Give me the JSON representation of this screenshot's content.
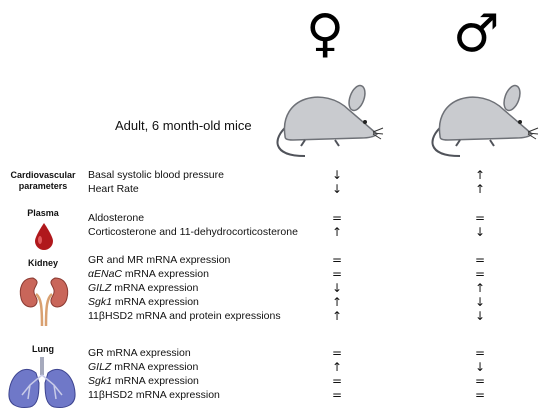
{
  "header": {
    "female_symbol": "♀",
    "male_symbol": "♂",
    "subject": "Adult, 6 month-old mice"
  },
  "categories": [
    {
      "label_line1": "Cardiovascular",
      "label_line2": "parameters",
      "icon": "blood-pressure-text"
    },
    {
      "label_line1": "Plasma",
      "label_line2": "",
      "icon": "blood-drop-icon"
    },
    {
      "label_line1": "Kidney",
      "label_line2": "",
      "icon": "kidney-icon"
    },
    {
      "label_line1": "Lung",
      "label_line2": "",
      "icon": "lung-icon"
    }
  ],
  "rows": [
    {
      "pre": "",
      "it": "",
      "post": "Basal systolic blood pressure",
      "female": "↓",
      "male": "↑"
    },
    {
      "pre": "",
      "it": "",
      "post": "Heart Rate",
      "female": "↓",
      "male": "↑"
    },
    {
      "pre": "",
      "it": "",
      "post": "Aldosterone",
      "female": "=",
      "male": "="
    },
    {
      "pre": "",
      "it": "",
      "post": "Corticosterone and 11-dehydrocorticosterone",
      "female": "↑",
      "male": "↓"
    },
    {
      "pre": "",
      "it": "",
      "post": "GR and MR mRNA expression",
      "female": "=",
      "male": "="
    },
    {
      "pre": "",
      "it": "αENaC",
      "post": " mRNA expression",
      "female": "=",
      "male": "="
    },
    {
      "pre": "",
      "it": "GILZ",
      "post": " mRNA expression",
      "female": "↓",
      "male": "↑"
    },
    {
      "pre": "",
      "it": "Sgk1",
      "post": " mRNA expression",
      "female": "↑",
      "male": "↓"
    },
    {
      "pre": "11βHSD2 mRNA and protein expressions",
      "it": "",
      "post": "",
      "female": "↑",
      "male": "↓"
    },
    {
      "pre": "",
      "it": "",
      "post": "GR mRNA expression",
      "female": "=",
      "male": "="
    },
    {
      "pre": "",
      "it": "GILZ",
      "post": " mRNA expression",
      "female": "↑",
      "male": "↓"
    },
    {
      "pre": "",
      "it": "Sgk1",
      "post": " mRNA expression",
      "female": "=",
      "male": "="
    },
    {
      "pre": "11βHSD2 mRNA expression",
      "it": "",
      "post": "",
      "female": "=",
      "male": "="
    }
  ],
  "colors": {
    "mouse_body": "#c9cbcf",
    "mouse_outline": "#6e7177",
    "blood": "#b0181c",
    "kidney": "#c9665a",
    "lung": "#6f78c8"
  }
}
